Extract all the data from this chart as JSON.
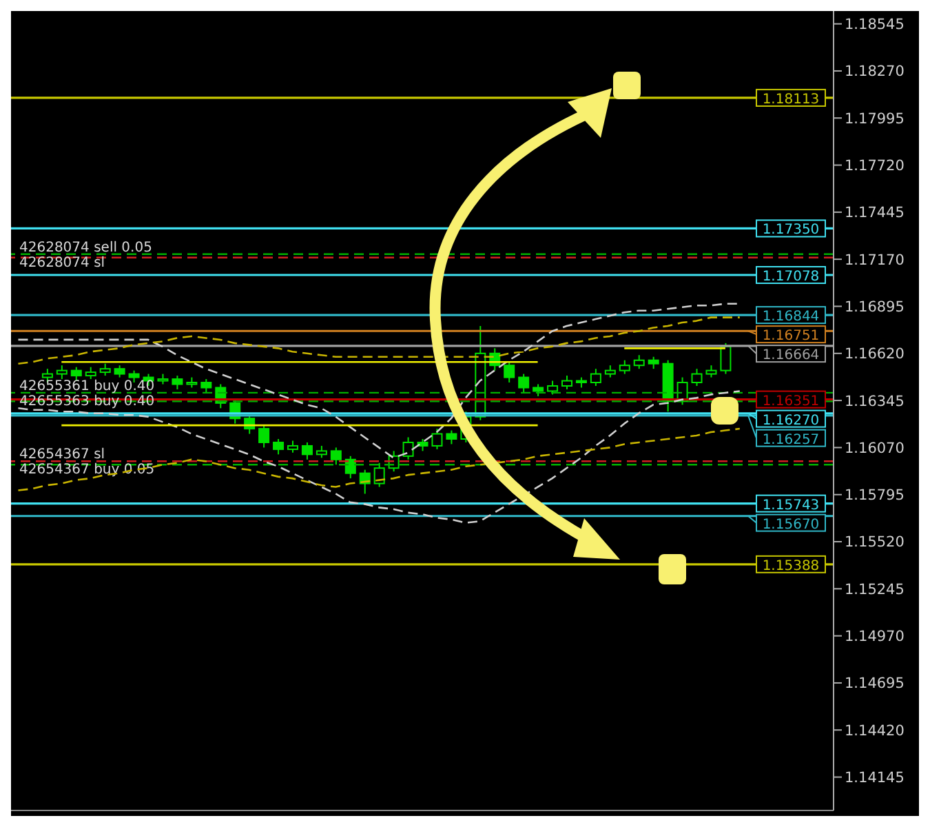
{
  "chart_data": {
    "type": "candlestick",
    "color": "#00e000",
    "tick_labels": "y",
    "categories": [
      null,
      null,
      null,
      null,
      null,
      null,
      null,
      null,
      null,
      null,
      null,
      null,
      null,
      null,
      null,
      null,
      null,
      null,
      null,
      null,
      null,
      null,
      null,
      null,
      null,
      null,
      null,
      null,
      null,
      null,
      null,
      null,
      null,
      null,
      null,
      null,
      null,
      null,
      null,
      null,
      null,
      null,
      null,
      null,
      null,
      null,
      null,
      null,
      null,
      null,
      null,
      null,
      null,
      null,
      null,
      null,
      null
    ],
    "ohlc": [
      null,
      null,
      [
        1.1648,
        1.1653,
        1.1645,
        1.165
      ],
      [
        1.165,
        1.1655,
        1.1647,
        1.1652
      ],
      [
        1.1652,
        1.1654,
        1.1646,
        1.1649
      ],
      [
        1.1649,
        1.1654,
        1.1647,
        1.1651
      ],
      [
        1.1651,
        1.1656,
        1.1649,
        1.1653
      ],
      [
        1.1653,
        1.1655,
        1.1648,
        1.165
      ],
      [
        1.165,
        1.1652,
        1.1645,
        1.1648
      ],
      [
        1.1648,
        1.165,
        1.1643,
        1.1646
      ],
      [
        1.1646,
        1.165,
        1.1644,
        1.1647
      ],
      [
        1.1647,
        1.1649,
        1.1641,
        1.1644
      ],
      [
        1.1644,
        1.1648,
        1.1642,
        1.1645
      ],
      [
        1.1645,
        1.1647,
        1.1639,
        1.1642
      ],
      [
        1.1642,
        1.1644,
        1.163,
        1.1633
      ],
      [
        1.1633,
        1.1635,
        1.1621,
        1.1624
      ],
      [
        1.1624,
        1.1626,
        1.1615,
        1.1618
      ],
      [
        1.1618,
        1.162,
        1.1607,
        1.161
      ],
      [
        1.161,
        1.1612,
        1.1603,
        1.1606
      ],
      [
        1.1606,
        1.1611,
        1.1604,
        1.1608
      ],
      [
        1.1608,
        1.161,
        1.16,
        1.1603
      ],
      [
        1.1603,
        1.1608,
        1.1601,
        1.1605
      ],
      [
        1.1605,
        1.1607,
        1.1597,
        1.16
      ],
      [
        1.16,
        1.1602,
        1.1589,
        1.1592
      ],
      [
        1.1592,
        1.1594,
        1.158,
        1.1586
      ],
      [
        1.1586,
        1.1598,
        1.1584,
        1.1595
      ],
      [
        1.1595,
        1.1605,
        1.1593,
        1.1602
      ],
      [
        1.1602,
        1.1613,
        1.16,
        1.161
      ],
      [
        1.161,
        1.1612,
        1.1605,
        1.1608
      ],
      [
        1.1608,
        1.1618,
        1.1606,
        1.1615
      ],
      [
        1.1615,
        1.1617,
        1.1609,
        1.1612
      ],
      [
        1.1612,
        1.1628,
        1.161,
        1.1625
      ],
      [
        1.1625,
        1.1678,
        1.1623,
        1.1662
      ],
      [
        1.1662,
        1.1665,
        1.1652,
        1.1655
      ],
      [
        1.1655,
        1.1657,
        1.1645,
        1.1648
      ],
      [
        1.1648,
        1.165,
        1.1639,
        1.1642
      ],
      [
        1.1642,
        1.1644,
        1.1637,
        1.164
      ],
      [
        1.164,
        1.1646,
        1.1638,
        1.1643
      ],
      [
        1.1643,
        1.1649,
        1.1641,
        1.1646
      ],
      [
        1.1646,
        1.1648,
        1.1642,
        1.1645
      ],
      [
        1.1645,
        1.1653,
        1.1643,
        1.165
      ],
      [
        1.165,
        1.1655,
        1.1648,
        1.1652
      ],
      [
        1.1652,
        1.1658,
        1.165,
        1.1655
      ],
      [
        1.1655,
        1.1661,
        1.1653,
        1.1658
      ],
      [
        1.1658,
        1.166,
        1.1653,
        1.1656
      ],
      [
        1.1656,
        1.1658,
        1.1628,
        1.1634
      ],
      [
        1.1634,
        1.1648,
        1.1632,
        1.1645
      ],
      [
        1.1645,
        1.1653,
        1.1643,
        1.165
      ],
      [
        1.165,
        1.1655,
        1.1648,
        1.1652
      ],
      [
        1.1652,
        1.1668,
        1.165,
        1.1666
      ],
      null,
      null,
      null,
      null,
      null,
      null,
      null
    ],
    "series": [
      {
        "type": "line",
        "line_style": "dashed",
        "color": "#d0d0d0",
        "values": [
          1.167,
          1.167,
          1.167,
          1.167,
          1.167,
          1.167,
          1.167,
          1.167,
          1.167,
          1.167,
          1.1666,
          1.1661,
          1.1657,
          1.1653,
          1.165,
          1.1647,
          1.1644,
          1.1641,
          1.1638,
          1.1635,
          1.1632,
          1.163,
          1.1625,
          1.1619,
          1.1613,
          1.1607,
          1.1601,
          1.1604,
          1.161,
          1.1616,
          1.1624,
          1.1636,
          1.1646,
          1.1652,
          1.1658,
          1.1663,
          1.1669,
          1.1675,
          1.1678,
          1.168,
          1.1682,
          1.1684,
          1.1686,
          1.1687,
          1.1687,
          1.1688,
          1.1689,
          1.169,
          1.169,
          1.1691,
          1.1691,
          null,
          null,
          null,
          null,
          null,
          null
        ]
      },
      {
        "type": "line",
        "line_style": "dashed",
        "color": "#d0d0d0",
        "values": [
          1.163,
          1.1629,
          1.1629,
          1.1628,
          1.1628,
          1.1627,
          1.1627,
          1.1626,
          1.1626,
          1.1625,
          1.1622,
          1.1619,
          1.1615,
          1.1612,
          1.1609,
          1.1606,
          1.1603,
          1.1599,
          1.1596,
          1.1592,
          1.1588,
          1.1584,
          1.158,
          1.1575,
          1.1574,
          1.1572,
          1.1571,
          1.1569,
          1.1568,
          1.1566,
          1.1565,
          1.1563,
          1.1564,
          1.1569,
          1.1574,
          1.1579,
          1.1584,
          1.1589,
          1.1595,
          1.1601,
          1.1608,
          1.1614,
          1.1621,
          1.1627,
          1.1632,
          1.1633,
          1.1635,
          1.1636,
          1.1638,
          1.1639,
          1.164,
          null,
          null,
          null,
          null,
          null,
          null
        ]
      },
      {
        "type": "line",
        "line_style": "dashed",
        "color": "#c8b400",
        "values": [
          1.1656,
          1.1657,
          1.1659,
          1.166,
          1.1661,
          1.1663,
          1.1664,
          1.1665,
          1.1667,
          1.1668,
          1.1669,
          1.1671,
          1.1672,
          1.1671,
          1.167,
          1.1668,
          1.1667,
          1.1666,
          1.1665,
          1.1663,
          1.1662,
          1.1661,
          1.166,
          1.166,
          1.166,
          1.166,
          1.166,
          1.166,
          1.166,
          1.166,
          1.166,
          1.166,
          1.166,
          1.166,
          1.1662,
          1.1663,
          1.1665,
          1.1666,
          1.1668,
          1.1669,
          1.1671,
          1.1672,
          1.1674,
          1.1675,
          1.1677,
          1.1678,
          1.168,
          1.1681,
          1.1683,
          1.1683,
          1.1683,
          null,
          null,
          null,
          null,
          null,
          null
        ]
      },
      {
        "type": "line",
        "line_style": "dashed",
        "color": "#c8b400",
        "values": [
          1.1582,
          1.1583,
          1.1585,
          1.1586,
          1.1588,
          1.1589,
          1.1591,
          1.1592,
          1.1594,
          1.1595,
          1.1597,
          1.1598,
          1.16,
          1.1599,
          1.1597,
          1.1595,
          1.1594,
          1.1592,
          1.159,
          1.1589,
          1.1587,
          1.1585,
          1.1584,
          1.1586,
          1.1587,
          1.1588,
          1.1589,
          1.1591,
          1.1592,
          1.1593,
          1.1594,
          1.1596,
          1.1597,
          1.1598,
          1.1599,
          1.16,
          1.1602,
          1.1603,
          1.1604,
          1.1605,
          1.1606,
          1.1607,
          1.1609,
          1.161,
          1.1611,
          1.1612,
          1.1613,
          1.1614,
          1.1616,
          1.1617,
          1.1618,
          null,
          null,
          null,
          null,
          null,
          null
        ]
      },
      {
        "type": "line",
        "line_style": "solid",
        "color": "#f0f000",
        "values": [
          null,
          null,
          null,
          1.1657,
          1.1657,
          1.1657,
          1.1657,
          1.1657,
          1.1657,
          1.1657,
          1.1657,
          1.1657,
          1.1657,
          1.1657,
          1.1657,
          1.1657,
          1.1657,
          1.1657,
          1.1657,
          1.1657,
          1.1657,
          1.1657,
          1.1657,
          1.1657,
          1.1657,
          1.1657,
          1.1657,
          1.1657,
          1.1657,
          1.1657,
          1.1657,
          1.1657,
          1.1657,
          1.1657,
          1.1657,
          1.1657,
          1.1657,
          null,
          null,
          null,
          null,
          null,
          null,
          null,
          null,
          null,
          null,
          null,
          null,
          null,
          null,
          null,
          null,
          null,
          null,
          null,
          null
        ]
      },
      {
        "type": "line",
        "line_style": "solid",
        "color": "#f0f000",
        "values": [
          null,
          null,
          null,
          1.162,
          1.162,
          1.162,
          1.162,
          1.162,
          1.162,
          1.162,
          1.162,
          1.162,
          1.162,
          1.162,
          1.162,
          1.162,
          1.162,
          1.162,
          1.162,
          1.162,
          1.162,
          1.162,
          1.162,
          1.162,
          1.162,
          1.162,
          1.162,
          1.162,
          1.162,
          1.162,
          1.162,
          1.162,
          1.162,
          1.162,
          1.162,
          1.162,
          1.162,
          null,
          null,
          null,
          null,
          null,
          null,
          null,
          null,
          null,
          null,
          null,
          null,
          null,
          null,
          null,
          null,
          null,
          null,
          null,
          null
        ]
      },
      {
        "type": "line",
        "line_style": "solid",
        "color": "#f0f000",
        "values": [
          null,
          null,
          null,
          null,
          null,
          null,
          null,
          null,
          null,
          null,
          null,
          null,
          null,
          null,
          null,
          null,
          null,
          null,
          null,
          null,
          null,
          null,
          null,
          null,
          null,
          null,
          null,
          null,
          null,
          null,
          null,
          null,
          null,
          null,
          null,
          null,
          null,
          null,
          null,
          null,
          null,
          null,
          1.1665,
          1.1665,
          1.1665,
          1.1665,
          1.1665,
          1.1665,
          1.1665,
          1.1665,
          null,
          null,
          null,
          null,
          null,
          null,
          null
        ]
      }
    ],
    "ylim": [
      1.1395,
      1.1862
    ],
    "yticks": [
      {
        "value": 1.18545,
        "label": "1.18545"
      },
      {
        "value": 1.1827,
        "label": "1.18270"
      },
      {
        "value": 1.17995,
        "label": "1.17995"
      },
      {
        "value": 1.1772,
        "label": "1.17720"
      },
      {
        "value": 1.17445,
        "label": "1.17445"
      },
      {
        "value": 1.1717,
        "label": "1.17170"
      },
      {
        "value": 1.16895,
        "label": "1.16895"
      },
      {
        "value": 1.1662,
        "label": "1.16620"
      },
      {
        "value": 1.16345,
        "label": "1.16345"
      },
      {
        "value": 1.1607,
        "label": "1.16070"
      },
      {
        "value": 1.15795,
        "label": "1.15795"
      },
      {
        "value": 1.1552,
        "label": "1.15520"
      },
      {
        "value": 1.15245,
        "label": "1.15245"
      },
      {
        "value": 1.1497,
        "label": "1.14970"
      },
      {
        "value": 1.14695,
        "label": "1.14695"
      },
      {
        "value": 1.1442,
        "label": "1.14420"
      },
      {
        "value": 1.14145,
        "label": "1.14145"
      }
    ],
    "ref_lines": [
      {
        "axis": "y",
        "value": 1.18113,
        "label": "1.18113",
        "color": "#c8c800",
        "line_style": "solid"
      },
      {
        "axis": "y",
        "value": 1.1735,
        "label": "1.17350",
        "color": "#40e0f0",
        "line_style": "solid"
      },
      {
        "axis": "y",
        "value": 1.172,
        "label": "42628074 sell 0.05",
        "color": "#00b000",
        "line_style": "dashed"
      },
      {
        "axis": "y",
        "value": 1.1718,
        "label": "42628074 sl",
        "color": "#d02020",
        "line_style": "dashed"
      },
      {
        "axis": "y",
        "value": 1.17078,
        "label": "1.17078",
        "color": "#40e0f0",
        "line_style": "solid"
      },
      {
        "axis": "y",
        "value": 1.16844,
        "label": "1.16844",
        "color": "#30b8c8",
        "line_style": "solid"
      },
      {
        "axis": "y",
        "value": 1.16751,
        "label": "1.16751",
        "color": "#d08020",
        "line_style": "solid"
      },
      {
        "axis": "y",
        "value": 1.16664,
        "label": "1.16664",
        "color": "#a0a0a0",
        "line_style": "solid"
      },
      {
        "axis": "y",
        "value": 1.1639,
        "label": "42655361 buy 0.40",
        "color": "#00b000",
        "line_style": "dashed"
      },
      {
        "axis": "y",
        "value": 1.16351,
        "label": "1.16351",
        "color": "#c00000",
        "line_style": "solid"
      },
      {
        "axis": "y",
        "value": 1.1634,
        "label": "42655363 buy 0.40",
        "color": "#00b000",
        "line_style": "dashed"
      },
      {
        "axis": "y",
        "value": 1.1627,
        "label": "1.16270",
        "color": "#40e0f0",
        "line_style": "solid"
      },
      {
        "axis": "y",
        "value": 1.16257,
        "label": "1.16257",
        "color": "#30b8c8",
        "line_style": "solid"
      },
      {
        "axis": "y",
        "value": 1.1599,
        "label": "42654367 sl",
        "color": "#d02020",
        "line_style": "dashed"
      },
      {
        "axis": "y",
        "value": 1.1597,
        "label": "42654367 buy 0.05",
        "color": "#00b000",
        "line_style": "dashed"
      },
      {
        "axis": "y",
        "value": 1.15743,
        "label": "1.15743",
        "color": "#40e0f0",
        "line_style": "solid"
      },
      {
        "axis": "y",
        "value": 1.1567,
        "label": "1.15670",
        "color": "#30b8c8",
        "line_style": "solid"
      },
      {
        "axis": "y",
        "value": 1.15388,
        "label": "1.15388",
        "color": "#c8c800",
        "line_style": "solid"
      }
    ]
  }
}
